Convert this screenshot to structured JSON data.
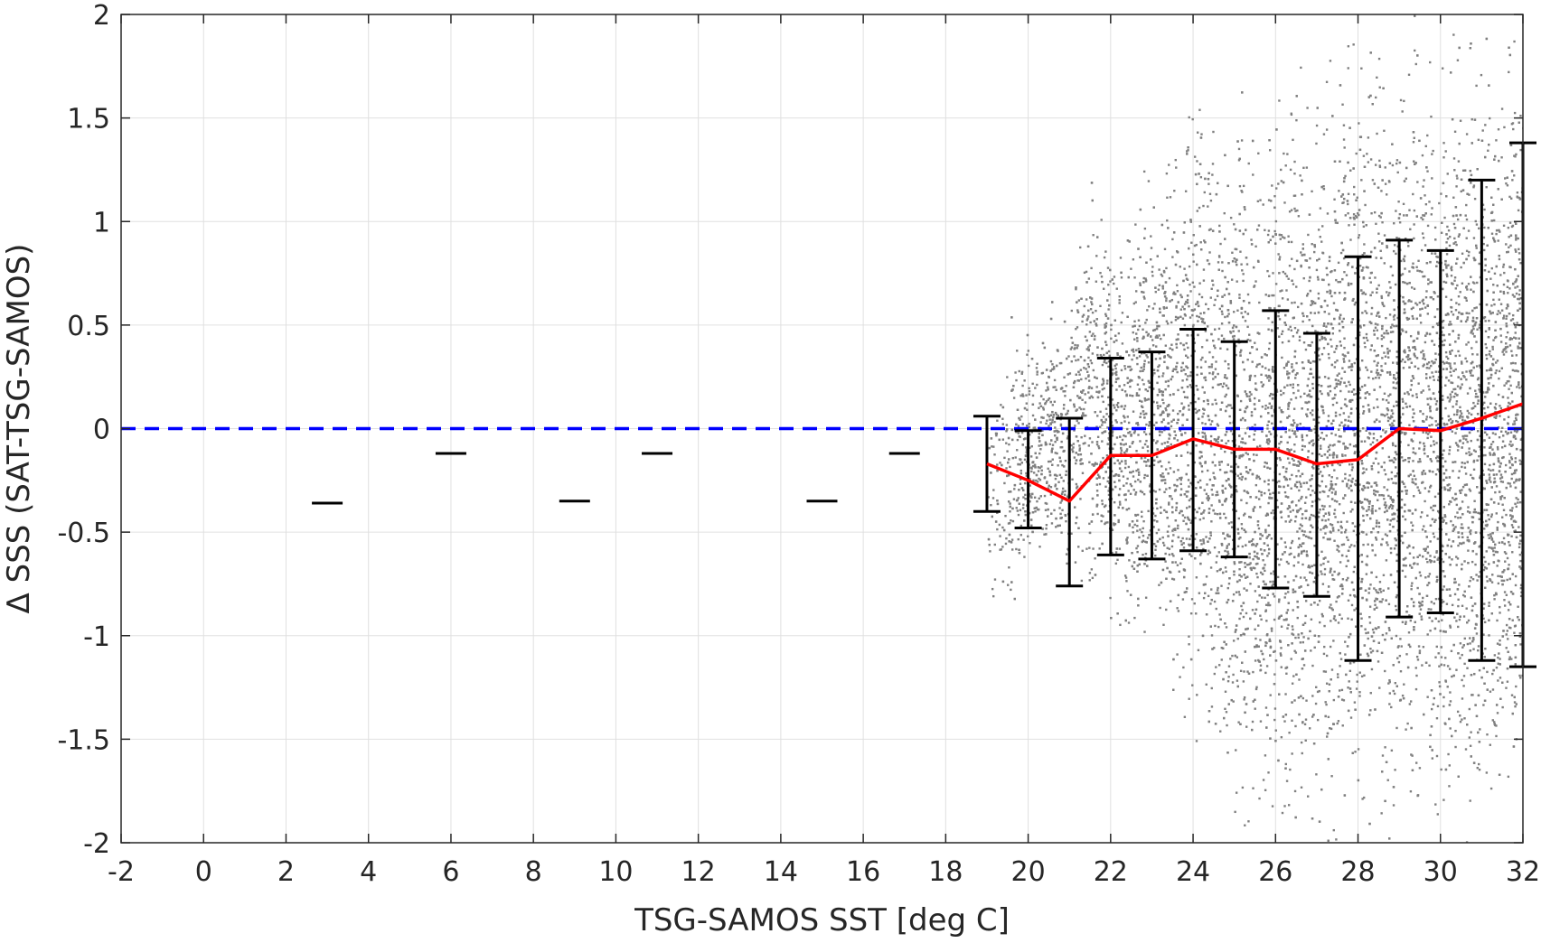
{
  "chart_data": {
    "type": "scatter",
    "xlabel": "TSG-SAMOS SST [deg C]",
    "ylabel": "Δ SSS (SAT-TSG-SAMOS)",
    "xlim": [
      -2,
      32
    ],
    "ylim": [
      -2,
      2
    ],
    "x_ticks": [
      -2,
      0,
      2,
      4,
      6,
      8,
      10,
      12,
      14,
      16,
      18,
      20,
      22,
      24,
      26,
      28,
      30,
      32
    ],
    "x_tick_labels": [
      "-2",
      "0",
      "2",
      "4",
      "6",
      "8",
      "10",
      "12",
      "14",
      "16",
      "18",
      "20",
      "22",
      "24",
      "26",
      "28",
      "30",
      "32"
    ],
    "y_ticks": [
      -2,
      -1.5,
      -1,
      -0.5,
      0,
      0.5,
      1,
      1.5,
      2
    ],
    "y_tick_labels": [
      "-2",
      "-1.5",
      "-1",
      "-0.5",
      "0",
      "0.5",
      "1",
      "1.5",
      "2"
    ],
    "grid": true,
    "legend": "none",
    "colors": {
      "scatter": "#808080",
      "mean_line": "#ff0000",
      "error_bars": "#000000",
      "zero_line": "#0000ff",
      "grid": "#e0e0e0",
      "axes": "#262626"
    },
    "zero_line": {
      "y": 0,
      "style": "dashed"
    },
    "scatter_envelope": [
      {
        "x": 19,
        "ymin": -0.95,
        "ymax": 0.15
      },
      {
        "x": 19.5,
        "ymin": -0.9,
        "ymax": 0.55
      },
      {
        "x": 20,
        "ymin": -0.7,
        "ymax": 0.5
      },
      {
        "x": 20.5,
        "ymin": -0.75,
        "ymax": 0.6
      },
      {
        "x": 21,
        "ymin": -0.9,
        "ymax": 0.8
      },
      {
        "x": 21.5,
        "ymin": -0.85,
        "ymax": 1.25
      },
      {
        "x": 22,
        "ymin": -1.0,
        "ymax": 1.0
      },
      {
        "x": 22.5,
        "ymin": -1.3,
        "ymax": 1.2
      },
      {
        "x": 23,
        "ymin": -1.1,
        "ymax": 1.3
      },
      {
        "x": 23.5,
        "ymin": -1.4,
        "ymax": 1.5
      },
      {
        "x": 24,
        "ymin": -1.6,
        "ymax": 1.7
      },
      {
        "x": 24.5,
        "ymin": -1.7,
        "ymax": 1.6
      },
      {
        "x": 25,
        "ymin": -2.0,
        "ymax": 1.7
      },
      {
        "x": 25.5,
        "ymin": -2.0,
        "ymax": 1.5
      },
      {
        "x": 26,
        "ymin": -2.0,
        "ymax": 1.8
      },
      {
        "x": 26.5,
        "ymin": -2.0,
        "ymax": 1.8
      },
      {
        "x": 27,
        "ymin": -2.0,
        "ymax": 1.6
      },
      {
        "x": 27.5,
        "ymin": -2.0,
        "ymax": 1.9
      },
      {
        "x": 28,
        "ymin": -2.0,
        "ymax": 2.0
      },
      {
        "x": 28.5,
        "ymin": -2.0,
        "ymax": 2.0
      },
      {
        "x": 29,
        "ymin": -2.0,
        "ymax": 2.0
      },
      {
        "x": 29.5,
        "ymin": -2.0,
        "ymax": 2.0
      },
      {
        "x": 30,
        "ymin": -2.0,
        "ymax": 2.0
      },
      {
        "x": 30.5,
        "ymin": -2.0,
        "ymax": 2.0
      },
      {
        "x": 31,
        "ymin": -2.0,
        "ymax": 2.0
      },
      {
        "x": 31.5,
        "ymin": -2.0,
        "ymax": 2.0
      },
      {
        "x": 32,
        "ymin": -1.8,
        "ymax": 2.0
      }
    ],
    "isolated_means": [
      {
        "x": 3,
        "y": -0.36
      },
      {
        "x": 6,
        "y": -0.12
      },
      {
        "x": 9,
        "y": -0.35
      },
      {
        "x": 11,
        "y": -0.12
      },
      {
        "x": 15,
        "y": -0.35
      },
      {
        "x": 17,
        "y": -0.12
      }
    ],
    "series": [
      {
        "x": [
          19,
          20,
          21,
          22,
          23,
          24,
          25,
          26,
          27,
          28,
          29,
          30,
          31,
          32
        ],
        "values": [
          -0.17,
          -0.25,
          -0.35,
          -0.13,
          -0.13,
          -0.05,
          -0.1,
          -0.1,
          -0.17,
          -0.15,
          0.0,
          -0.01,
          0.05,
          0.12
        ]
      }
    ],
    "error_bars": [
      {
        "x": 19,
        "lower": -0.4,
        "upper": 0.06
      },
      {
        "x": 20,
        "lower": -0.48,
        "upper": -0.01
      },
      {
        "x": 21,
        "lower": -0.76,
        "upper": 0.05
      },
      {
        "x": 22,
        "lower": -0.61,
        "upper": 0.34
      },
      {
        "x": 23,
        "lower": -0.63,
        "upper": 0.37
      },
      {
        "x": 24,
        "lower": -0.59,
        "upper": 0.48
      },
      {
        "x": 25,
        "lower": -0.62,
        "upper": 0.42
      },
      {
        "x": 26,
        "lower": -0.77,
        "upper": 0.57
      },
      {
        "x": 27,
        "lower": -0.81,
        "upper": 0.46
      },
      {
        "x": 28,
        "lower": -1.12,
        "upper": 0.83
      },
      {
        "x": 29,
        "lower": -0.91,
        "upper": 0.91
      },
      {
        "x": 30,
        "lower": -0.89,
        "upper": 0.86
      },
      {
        "x": 31,
        "lower": -1.12,
        "upper": 1.2
      },
      {
        "x": 32,
        "lower": -1.15,
        "upper": 1.38
      }
    ]
  }
}
